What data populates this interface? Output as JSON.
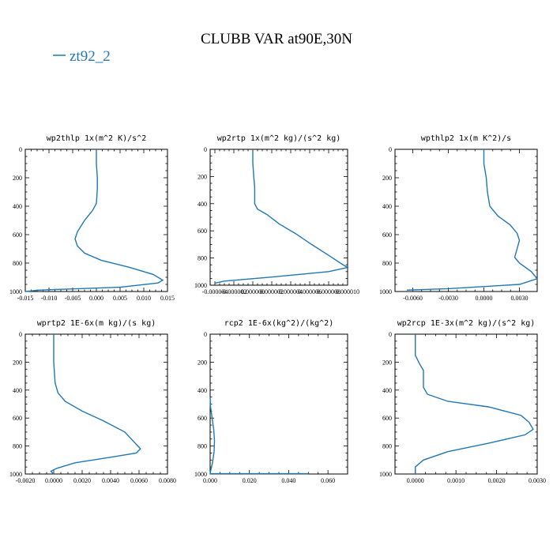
{
  "figure": {
    "title": "CLUBB VAR at90E,30N",
    "legend": {
      "label": "zt92_2",
      "color": "#1f77b4"
    }
  },
  "chart_data": [
    {
      "type": "line",
      "title": "wp2thlp  1x(m^2 K)/s^2",
      "xlim": [
        -0.015,
        0.015
      ],
      "ylim": [
        1000,
        0
      ],
      "xticks": [
        -0.015,
        -0.01,
        -0.005,
        0,
        0.005,
        0.01,
        0.015
      ],
      "xtick_labels": [
        "-0.015",
        "-0.010",
        "-0.005",
        "0.000",
        "0.005",
        "0.010",
        "0.015"
      ],
      "yticks": [
        0,
        200,
        400,
        600,
        800,
        1000
      ],
      "ytick_labels": [
        "0",
        "200",
        "400",
        "600",
        "800",
        "1000"
      ],
      "series": [
        {
          "name": "zt92_2",
          "color": "#1f77b4",
          "x": [
            0.0,
            0.0,
            0.0002,
            0.0002,
            0.0,
            -0.0008,
            -0.0025,
            -0.004,
            -0.0045,
            -0.004,
            -0.0025,
            0.001,
            0.007,
            0.012,
            0.014,
            0.013,
            0.005,
            -0.012,
            -0.015
          ],
          "y": [
            0,
            100,
            200,
            280,
            380,
            430,
            500,
            580,
            630,
            680,
            730,
            780,
            830,
            880,
            920,
            940,
            970,
            990,
            1000
          ]
        }
      ]
    },
    {
      "type": "line",
      "title": "wp2rtp  1x(m^2 kg)/(s^2 kg)",
      "xlim": [
        -4.5e-06,
        1e-05
      ],
      "ylim": [
        1000,
        0
      ],
      "xticks": [
        -4e-06,
        -2e-06,
        0,
        2e-06,
        4e-06,
        6e-06,
        8e-06,
        1e-05
      ],
      "xtick_labels": [
        "-0.000004",
        "-0.000002",
        "0.000000",
        "0.000002",
        "0.000004",
        "0.000006",
        "0.000008",
        "0.000010"
      ],
      "yticks": [
        0,
        200,
        400,
        600,
        800,
        1000
      ],
      "ytick_labels": [
        "0",
        "200",
        "400",
        "600",
        "800",
        "1000"
      ],
      "series": [
        {
          "name": "zt92_2",
          "color": "#1f77b4",
          "x": [
            0.0,
            0.0,
            1e-07,
            2e-07,
            2e-07,
            5e-07,
            1.5e-06,
            2.8e-06,
            4.5e-06,
            6.2e-06,
            8e-06,
            9.3e-06,
            1e-05,
            8e-06,
            2e-06,
            -3e-06,
            -4e-06
          ],
          "y": [
            0,
            100,
            200,
            280,
            400,
            440,
            480,
            550,
            620,
            700,
            780,
            840,
            870,
            900,
            940,
            970,
            985
          ]
        }
      ]
    },
    {
      "type": "line",
      "title": "wpthlp2  1x(m K^2)/s",
      "xlim": [
        -0.0075,
        0.0045
      ],
      "ylim": [
        1000,
        0
      ],
      "xticks": [
        -0.006,
        -0.003,
        0,
        0.003
      ],
      "xtick_labels": [
        "-0.0060",
        "-0.0030",
        "0.0000",
        "0.0030"
      ],
      "yticks": [
        0,
        200,
        400,
        600,
        800,
        1000
      ],
      "ytick_labels": [
        "0",
        "200",
        "400",
        "600",
        "800",
        "1000"
      ],
      "series": [
        {
          "name": "zt92_2",
          "color": "#1f77b4",
          "x": [
            0.0,
            0.0,
            0.0002,
            0.0003,
            0.0005,
            0.0012,
            0.0022,
            0.0028,
            0.003,
            0.0028,
            0.0026,
            0.003,
            0.004,
            0.0045,
            0.003,
            -0.003,
            -0.0065
          ],
          "y": [
            0,
            100,
            200,
            300,
            400,
            470,
            530,
            590,
            640,
            700,
            760,
            800,
            860,
            910,
            950,
            980,
            990
          ]
        }
      ]
    },
    {
      "type": "line",
      "title": "wprtp2  1E-6x(m kg)/(s kg)",
      "xlim": [
        -0.002,
        0.008
      ],
      "ylim": [
        1000,
        0
      ],
      "xticks": [
        -0.002,
        0,
        0.002,
        0.004,
        0.006,
        0.008
      ],
      "xtick_labels": [
        "-0.0020",
        "0.0000",
        "0.0020",
        "0.0040",
        "0.0060",
        "0.0080"
      ],
      "yticks": [
        0,
        200,
        400,
        600,
        800,
        1000
      ],
      "ytick_labels": [
        "0",
        "200",
        "400",
        "600",
        "800",
        "1000"
      ],
      "series": [
        {
          "name": "zt92_2",
          "color": "#1f77b4",
          "x": [
            0.0,
            0.0,
            0.0001,
            0.0003,
            0.0008,
            0.002,
            0.0035,
            0.005,
            0.0061,
            0.0058,
            0.004,
            0.0015,
            0.0002,
            -0.0002,
            0.0
          ],
          "y": [
            0,
            200,
            350,
            420,
            480,
            550,
            620,
            700,
            820,
            850,
            880,
            920,
            960,
            980,
            1000
          ]
        }
      ]
    },
    {
      "type": "line",
      "title": "rcp2  1E-6x(kg^2)/(kg^2)",
      "xlim": [
        0,
        0.07
      ],
      "ylim": [
        1000,
        0
      ],
      "xticks": [
        0,
        0.02,
        0.04,
        0.06
      ],
      "xtick_labels": [
        "0.000",
        "0.020",
        "0.040",
        "0.060"
      ],
      "yticks": [
        0,
        200,
        400,
        600,
        800,
        1000
      ],
      "ytick_labels": [
        "0",
        "200",
        "400",
        "600",
        "800",
        "1000"
      ],
      "series": [
        {
          "name": "zt92_2",
          "color": "#1f77b4",
          "x": [
            0.0,
            0.0002,
            0.001,
            0.0018,
            0.0022,
            0.002,
            0.0012,
            0.0003,
            0.0,
            0.05
          ],
          "y": [
            450,
            520,
            600,
            680,
            760,
            840,
            920,
            975,
            998,
            998
          ]
        }
      ]
    },
    {
      "type": "line",
      "title": "wp2rcp  1E-3x(m^2 kg)/(s^2 kg)",
      "xlim": [
        -0.0005,
        0.003
      ],
      "ylim": [
        1000,
        0
      ],
      "xticks": [
        0,
        0.001,
        0.002,
        0.003
      ],
      "xtick_labels": [
        "0.0000",
        "0.0010",
        "0.0020",
        "0.0030"
      ],
      "yticks": [
        0,
        200,
        400,
        600,
        800,
        1000
      ],
      "ytick_labels": [
        "0",
        "200",
        "400",
        "600",
        "800",
        "1000"
      ],
      "series": [
        {
          "name": "zt92_2",
          "color": "#1f77b4",
          "x": [
            0.0,
            0.0,
            0.0001,
            0.0002,
            0.0002,
            0.0003,
            0.0008,
            0.0018,
            0.0026,
            0.0028,
            0.0029,
            0.0027,
            0.0018,
            0.0008,
            0.0002,
            0.0,
            0.0
          ],
          "y": [
            0,
            150,
            210,
            260,
            380,
            430,
            480,
            520,
            580,
            630,
            680,
            720,
            780,
            840,
            900,
            950,
            1000
          ]
        }
      ]
    }
  ]
}
